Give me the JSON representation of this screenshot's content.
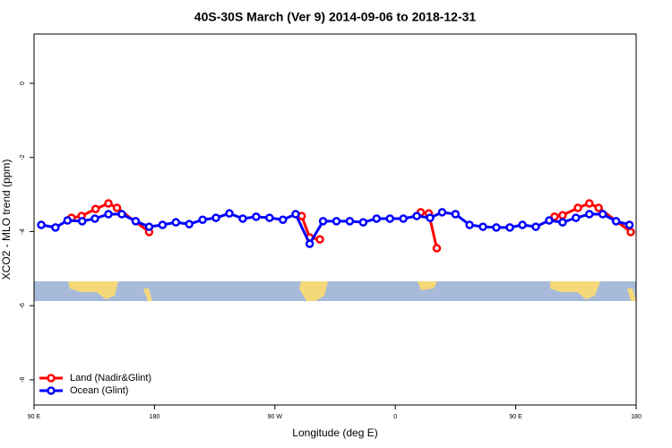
{
  "chart_data": {
    "type": "line",
    "title": "40S-30S March (Ver 9)   2014-09-06 to 2018-12-31",
    "x_label": "Longitude (deg E)",
    "y_label": "XCO2 - MLO trend (ppm)",
    "xlim": [
      90,
      540
    ],
    "xticks": [
      {
        "value": 90,
        "label": "90 E"
      },
      {
        "value": 180,
        "label": "180"
      },
      {
        "value": 270,
        "label": "90 W"
      },
      {
        "value": 360,
        "label": "0"
      },
      {
        "value": 450,
        "label": "90 E"
      },
      {
        "value": 540,
        "label": "180"
      }
    ],
    "ylim": [
      -8.68,
      1.33
    ],
    "yticks": [
      0,
      -2,
      -4,
      -6,
      -8
    ],
    "legend": "bottom-left",
    "series": [
      {
        "name": "Land (Nadir&Glint)",
        "color": "#ff0000",
        "x": [
          118,
          125.5,
          136,
          145.6,
          152,
          176,
          null,
          290,
          296,
          303.6,
          null,
          379,
          385,
          391,
          null,
          479,
          485,
          496.5,
          505,
          512,
          536
        ],
        "values": [
          -3.63,
          -3.58,
          -3.39,
          -3.24,
          -3.36,
          -4.01,
          null,
          -3.58,
          -4.16,
          -4.21,
          null,
          -3.48,
          -3.51,
          -4.45,
          null,
          -3.6,
          -3.56,
          -3.36,
          -3.24,
          -3.36,
          -4.01
        ]
      },
      {
        "name": "Ocean (Glint)",
        "color": "#0000ff",
        "x": [
          95.4,
          106,
          115,
          126,
          135.5,
          145.6,
          155.6,
          166,
          176,
          186,
          196,
          206,
          216,
          226,
          236,
          246,
          256,
          266,
          276,
          285.5,
          296,
          306,
          316,
          326,
          336,
          346,
          356,
          366,
          376,
          386,
          395,
          405,
          415.5,
          425.5,
          435.5,
          445.6,
          455,
          465,
          475,
          485,
          495,
          505,
          515,
          525,
          535
        ],
        "values": [
          -3.82,
          -3.89,
          -3.7,
          -3.72,
          -3.65,
          -3.53,
          -3.53,
          -3.72,
          -3.87,
          -3.82,
          -3.75,
          -3.8,
          -3.68,
          -3.63,
          -3.51,
          -3.65,
          -3.6,
          -3.63,
          -3.68,
          -3.53,
          -4.33,
          -3.72,
          -3.72,
          -3.72,
          -3.75,
          -3.65,
          -3.65,
          -3.65,
          -3.58,
          -3.63,
          -3.48,
          -3.53,
          -3.82,
          -3.87,
          -3.89,
          -3.89,
          -3.82,
          -3.87,
          -3.7,
          -3.75,
          -3.63,
          -3.53,
          -3.53,
          -3.72,
          -3.82
        ]
      }
    ]
  }
}
